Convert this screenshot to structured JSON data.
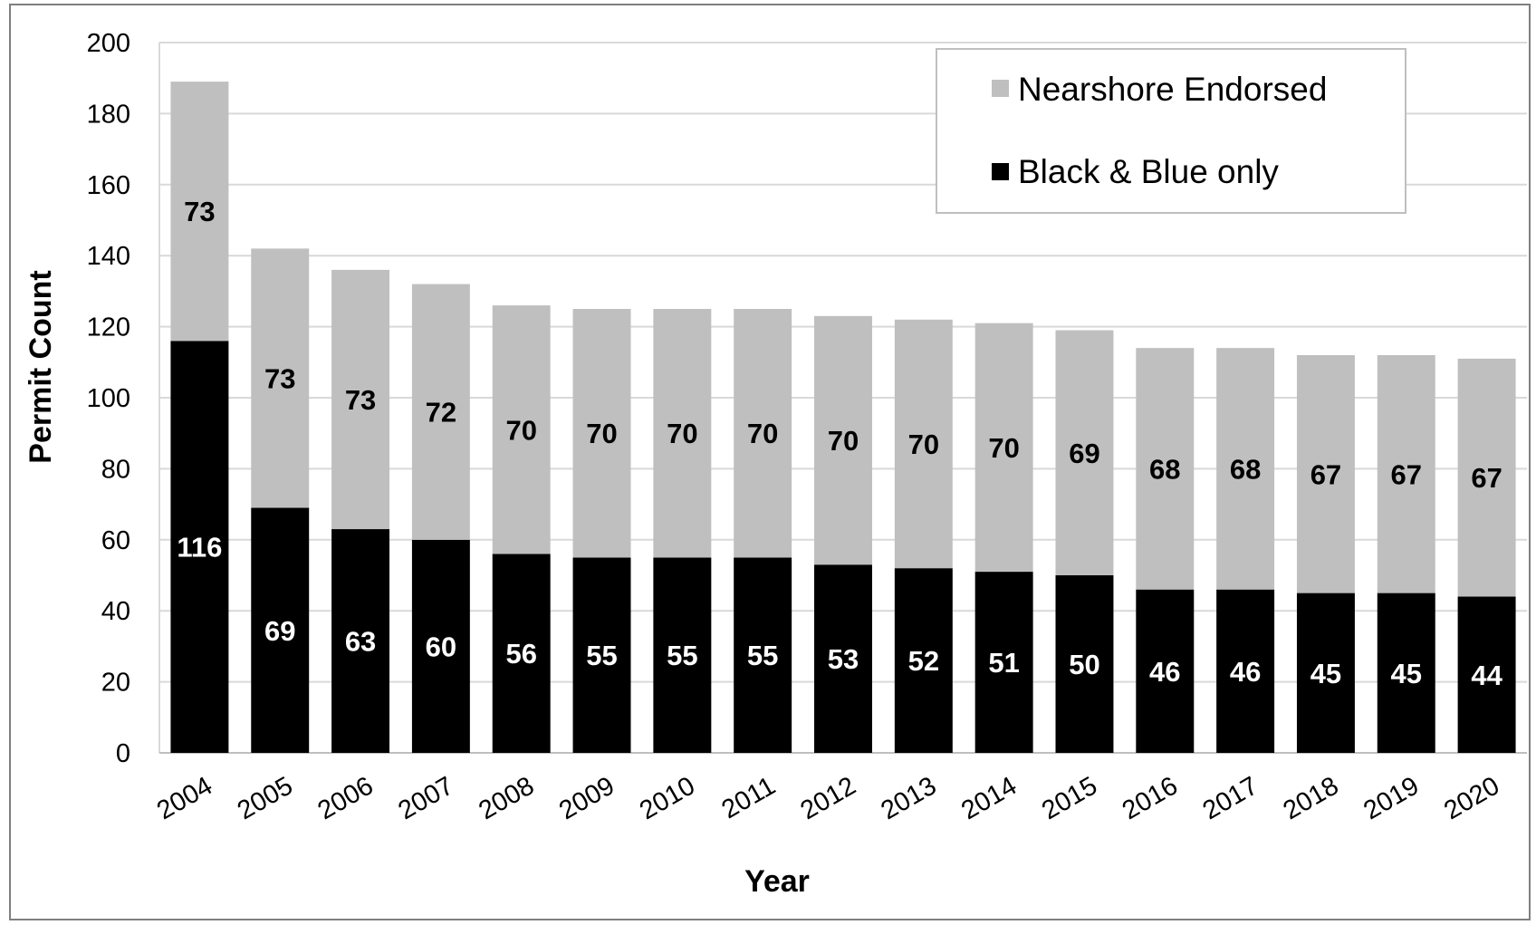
{
  "chart_data": {
    "type": "bar",
    "stacked": true,
    "title": "",
    "xlabel": "Year",
    "ylabel": "Permit Count",
    "ylim": [
      0,
      200
    ],
    "yticks": [
      0,
      20,
      40,
      60,
      80,
      100,
      120,
      140,
      160,
      180,
      200
    ],
    "grid": true,
    "legend_position": "top-right",
    "categories": [
      "2004",
      "2005",
      "2006",
      "2007",
      "2008",
      "2009",
      "2010",
      "2011",
      "2012",
      "2013",
      "2014",
      "2015",
      "2016",
      "2017",
      "2018",
      "2019",
      "2020"
    ],
    "series": [
      {
        "name": "Black & Blue only",
        "color": "#000000",
        "label_color": "#ffffff",
        "values": [
          116,
          69,
          63,
          60,
          56,
          55,
          55,
          55,
          53,
          52,
          51,
          50,
          46,
          46,
          45,
          45,
          44
        ]
      },
      {
        "name": "Nearshore Endorsed",
        "color": "#bfbfbf",
        "label_color": "#000000",
        "values": [
          73,
          73,
          73,
          72,
          70,
          70,
          70,
          70,
          70,
          70,
          70,
          69,
          68,
          68,
          67,
          67,
          67
        ]
      }
    ]
  }
}
